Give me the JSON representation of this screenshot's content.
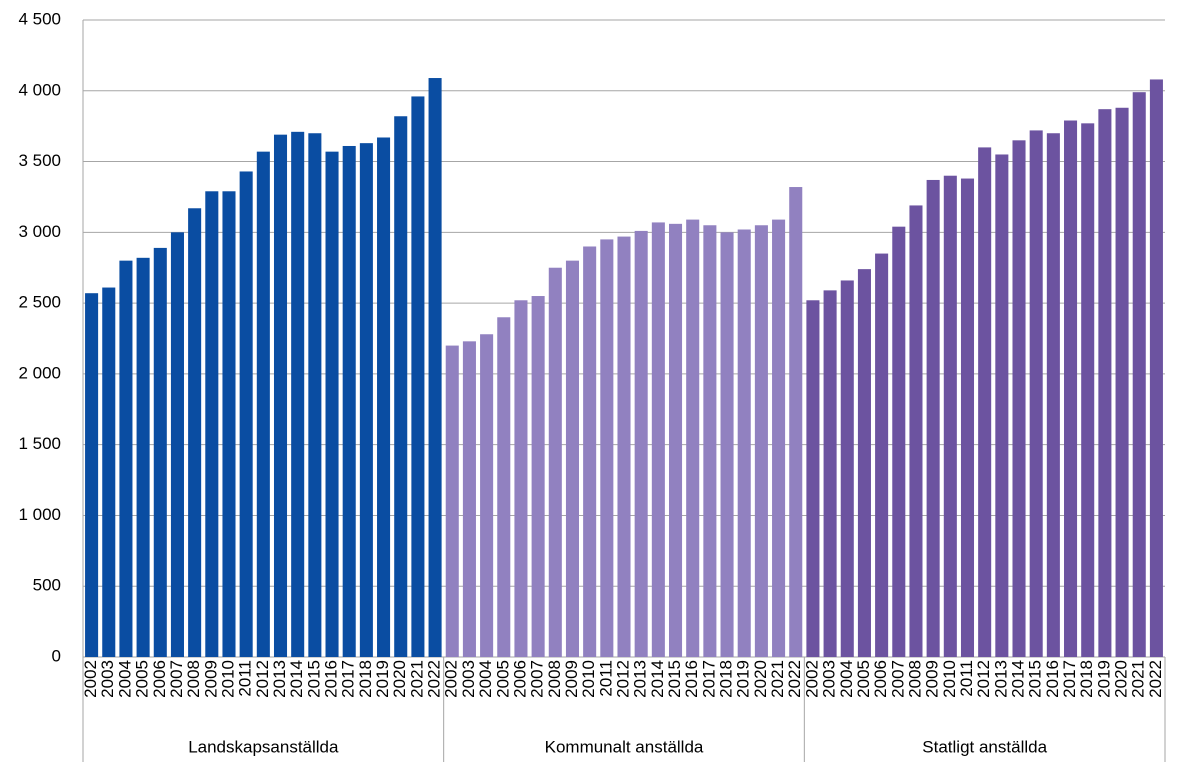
{
  "chart_data": {
    "type": "bar",
    "categories": [
      "2002",
      "2003",
      "2004",
      "2005",
      "2006",
      "2007",
      "2008",
      "2009",
      "2010",
      "2011",
      "2012",
      "2013",
      "2014",
      "2015",
      "2016",
      "2017",
      "2018",
      "2019",
      "2020",
      "2021",
      "2022"
    ],
    "series": [
      {
        "name": "Landskapsanställda",
        "color": "#0a4da2",
        "values": [
          2570,
          2610,
          2800,
          2820,
          2890,
          3000,
          3170,
          3290,
          3290,
          3430,
          3570,
          3690,
          3710,
          3700,
          3570,
          3610,
          3630,
          3670,
          3820,
          3960,
          4090
        ]
      },
      {
        "name": "Kommunalt anställda",
        "color": "#9181c0",
        "values": [
          2200,
          2230,
          2280,
          2400,
          2520,
          2550,
          2750,
          2800,
          2900,
          2950,
          2970,
          3010,
          3070,
          3060,
          3090,
          3050,
          3000,
          3020,
          3050,
          3090,
          3320
        ]
      },
      {
        "name": "Statligt anställda",
        "color": "#6c53a0",
        "values": [
          2520,
          2590,
          2660,
          2740,
          2850,
          3040,
          3190,
          3370,
          3400,
          3380,
          3600,
          3550,
          3650,
          3720,
          3700,
          3790,
          3770,
          3870,
          3880,
          3990,
          4080
        ]
      }
    ],
    "ylim": [
      0,
      4500
    ],
    "yticks": [
      0,
      500,
      {
        "value": 1000,
        "label": "1 000"
      },
      {
        "value": 1500,
        "label": "1 500"
      },
      {
        "value": 2000,
        "label": "2 000"
      },
      {
        "value": 2500,
        "label": "2 500"
      },
      {
        "value": 3000,
        "label": "3 000"
      },
      {
        "value": 3500,
        "label": "3 500"
      },
      {
        "value": 4000,
        "label": "4 000"
      },
      {
        "value": 4500,
        "label": "4 500"
      }
    ],
    "grid": true
  }
}
